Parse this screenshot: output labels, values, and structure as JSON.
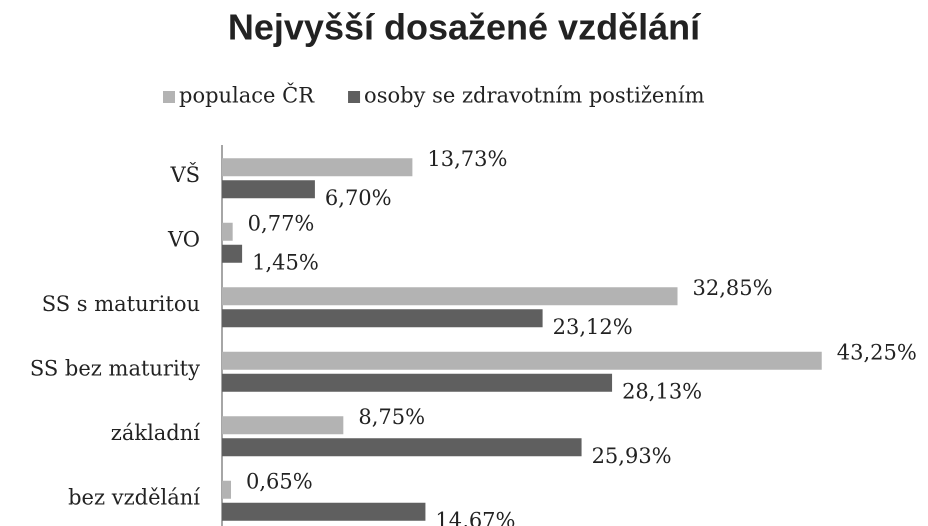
{
  "chart_data": {
    "type": "hbar",
    "title": "Nejvyšší dosažené vzdělání",
    "categories": [
      "VŠ",
      "VO",
      "SS s maturitou",
      "SS bez maturity",
      "základní",
      "bez vzdělání"
    ],
    "series": [
      {
        "name": "populace ČR",
        "color": "#b3b3b3",
        "values": [
          13.73,
          0.77,
          32.85,
          43.25,
          8.75,
          0.65
        ],
        "value_labels": [
          "13,73%",
          "0,77%",
          "32,85%",
          "43,25%",
          "8,75%",
          "0,65%"
        ]
      },
      {
        "name": "osoby se zdravotním postižením",
        "color": "#5f5f5f",
        "values": [
          6.7,
          1.45,
          23.12,
          28.13,
          25.93,
          14.67
        ],
        "value_labels": [
          "6,70%",
          "1,45%",
          "23,12%",
          "28,13%",
          "25,93%",
          "14,67%"
        ]
      }
    ],
    "xlim": [
      0,
      45
    ],
    "legend": "top"
  }
}
